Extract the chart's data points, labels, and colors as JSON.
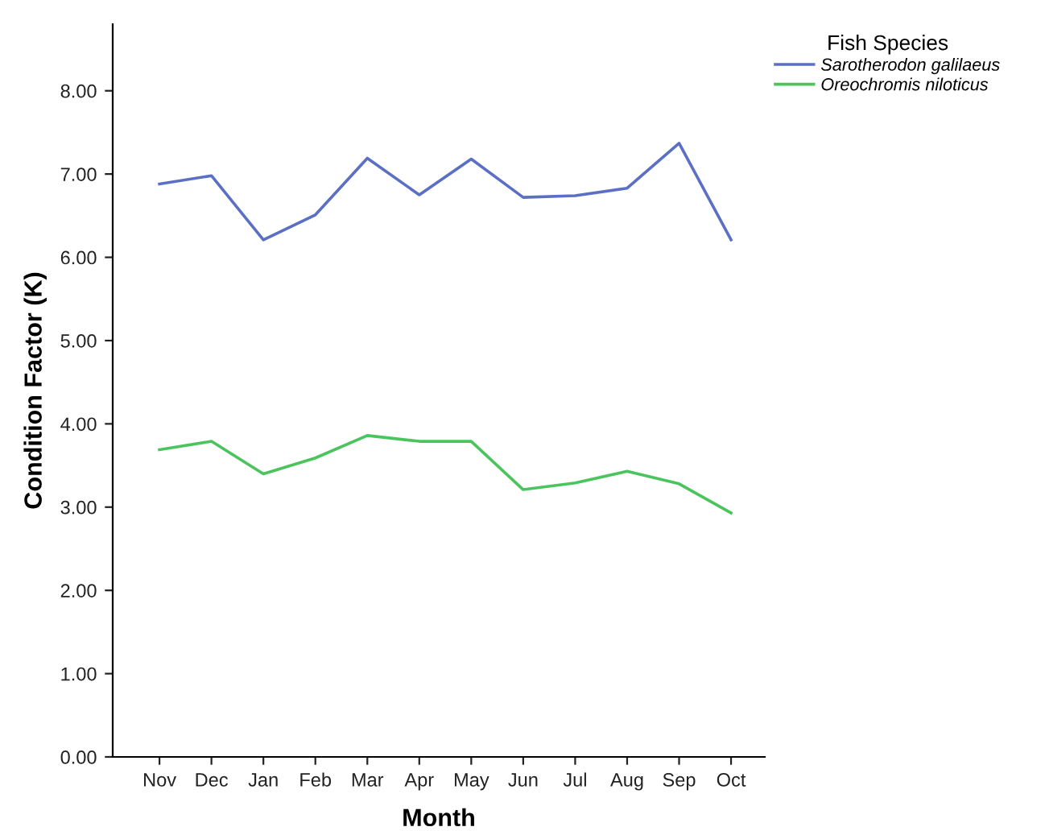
{
  "chart_data": {
    "type": "line",
    "xlabel": "Month",
    "ylabel": "Condition Factor (K)",
    "legend_title": "Fish Species",
    "legend": "top right",
    "grid": false,
    "marker": "none",
    "line_style": "solid",
    "categories": [
      "Nov",
      "Dec",
      "Jan",
      "Feb",
      "Mar",
      "Apr",
      "May",
      "Jun",
      "Jul",
      "Aug",
      "Sep",
      "Oct"
    ],
    "ylim": [
      0,
      8.8
    ],
    "yticks": [
      {
        "value": 0,
        "label": "0.00"
      },
      {
        "value": 1,
        "label": "1.00"
      },
      {
        "value": 2,
        "label": "2.00"
      },
      {
        "value": 3,
        "label": "3.00"
      },
      {
        "value": 4,
        "label": "4.00"
      },
      {
        "value": 5,
        "label": "5.00"
      },
      {
        "value": 6,
        "label": "6.00"
      },
      {
        "value": 7,
        "label": "7.00"
      },
      {
        "value": 8,
        "label": "8.00"
      }
    ],
    "series": [
      {
        "name": "Sarotherodon galilaeus",
        "color": "#5b6fc4",
        "values": [
          6.88,
          6.98,
          6.21,
          6.51,
          7.19,
          6.75,
          7.18,
          6.72,
          6.74,
          6.83,
          7.37,
          6.21
        ]
      },
      {
        "name": "Oreochromis niloticus",
        "color": "#4cc45e",
        "values": [
          3.69,
          3.79,
          3.4,
          3.59,
          3.86,
          3.79,
          3.79,
          3.21,
          3.29,
          3.43,
          3.28,
          2.93
        ]
      }
    ]
  }
}
